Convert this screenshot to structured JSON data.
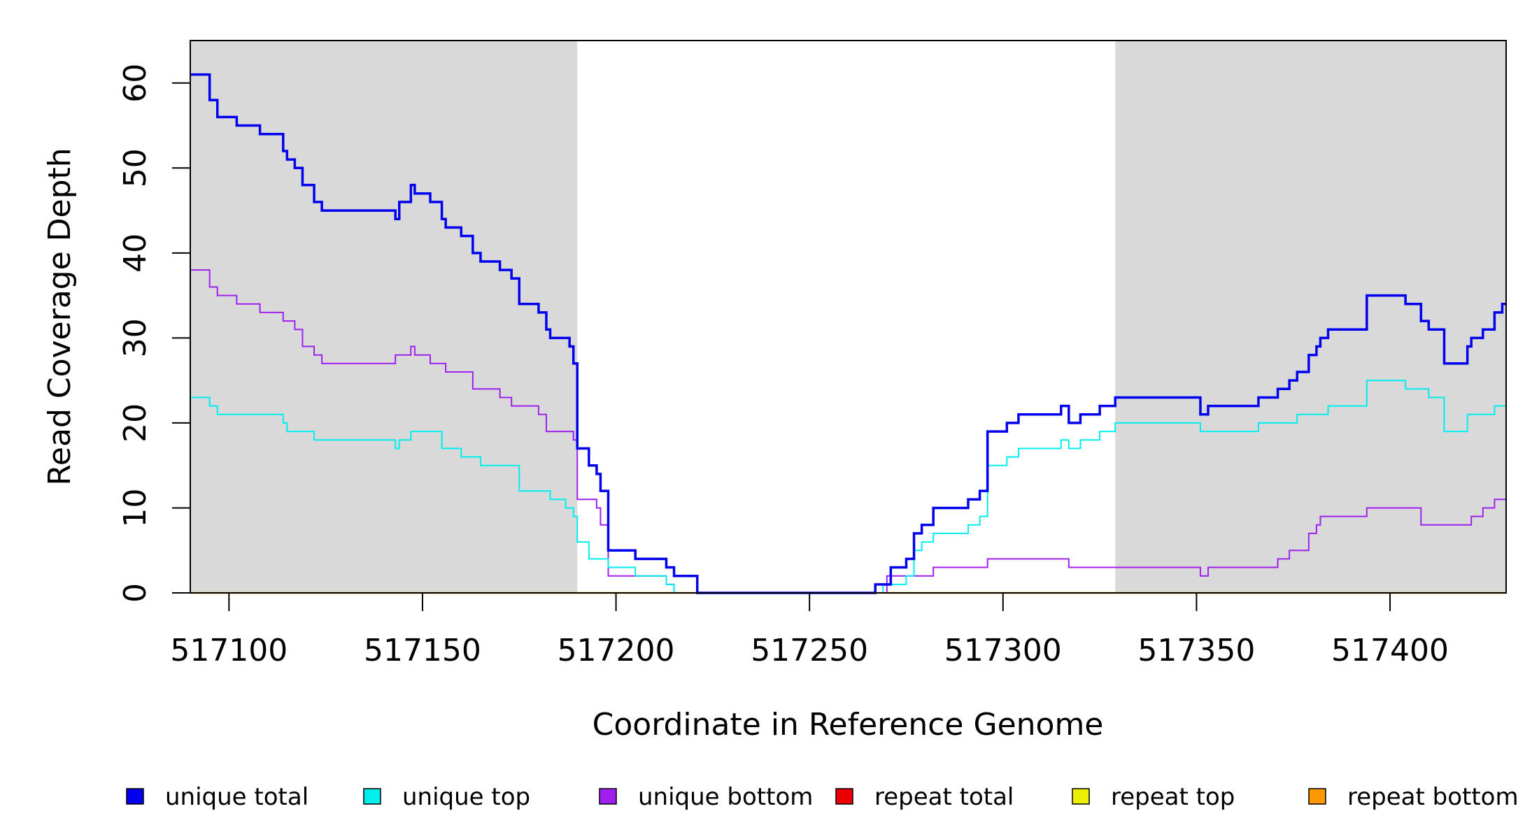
{
  "chart_data": {
    "type": "line",
    "title": "",
    "xlabel": "Coordinate in Reference Genome",
    "ylabel": "Read Coverage Depth",
    "xlim": [
      517090,
      517430
    ],
    "ylim": [
      0,
      65
    ],
    "x_ticks": [
      517100,
      517150,
      517200,
      517250,
      517300,
      517350,
      517400
    ],
    "x_tick_labels": [
      "517100",
      "517150",
      "517200",
      "517250",
      "517300",
      "517350",
      "517400"
    ],
    "y_ticks": [
      0,
      10,
      20,
      30,
      40,
      50,
      60
    ],
    "y_tick_labels": [
      "0",
      "10",
      "20",
      "30",
      "40",
      "50",
      "60"
    ],
    "shaded_regions": [
      {
        "start": 517090,
        "end": 517190,
        "color": "#d9d9d9"
      },
      {
        "start": 517329,
        "end": 517430,
        "color": "#d9d9d9"
      }
    ],
    "legend_position": "bottom",
    "series": [
      {
        "name": "unique total",
        "color": "#0000ee",
        "line_width": 3.5,
        "points": [
          [
            517090,
            61
          ],
          [
            517095,
            58
          ],
          [
            517097,
            56
          ],
          [
            517102,
            55
          ],
          [
            517108,
            54
          ],
          [
            517114,
            52
          ],
          [
            517115,
            51
          ],
          [
            517117,
            50
          ],
          [
            517119,
            48
          ],
          [
            517122,
            46
          ],
          [
            517124,
            45
          ],
          [
            517143,
            44
          ],
          [
            517144,
            46
          ],
          [
            517147,
            48
          ],
          [
            517148,
            47
          ],
          [
            517152,
            46
          ],
          [
            517155,
            44
          ],
          [
            517156,
            43
          ],
          [
            517160,
            42
          ],
          [
            517163,
            40
          ],
          [
            517165,
            39
          ],
          [
            517170,
            38
          ],
          [
            517173,
            37
          ],
          [
            517175,
            34
          ],
          [
            517180,
            33
          ],
          [
            517182,
            31
          ],
          [
            517183,
            30
          ],
          [
            517188,
            29
          ],
          [
            517189,
            27
          ],
          [
            517190,
            17
          ],
          [
            517193,
            15
          ],
          [
            517195,
            14
          ],
          [
            517196,
            12
          ],
          [
            517198,
            5
          ],
          [
            517205,
            4
          ],
          [
            517213,
            3
          ],
          [
            517215,
            2
          ],
          [
            517221,
            0
          ],
          [
            517267,
            1
          ],
          [
            517271,
            3
          ],
          [
            517275,
            4
          ],
          [
            517277,
            7
          ],
          [
            517279,
            8
          ],
          [
            517282,
            10
          ],
          [
            517291,
            11
          ],
          [
            517294,
            12
          ],
          [
            517296,
            19
          ],
          [
            517301,
            20
          ],
          [
            517304,
            21
          ],
          [
            517315,
            22
          ],
          [
            517317,
            20
          ],
          [
            517320,
            21
          ],
          [
            517325,
            22
          ],
          [
            517329,
            23
          ],
          [
            517351,
            21
          ],
          [
            517353,
            22
          ],
          [
            517366,
            23
          ],
          [
            517371,
            24
          ],
          [
            517374,
            25
          ],
          [
            517376,
            26
          ],
          [
            517379,
            28
          ],
          [
            517381,
            29
          ],
          [
            517382,
            30
          ],
          [
            517384,
            31
          ],
          [
            517394,
            35
          ],
          [
            517404,
            34
          ],
          [
            517408,
            32
          ],
          [
            517410,
            31
          ],
          [
            517414,
            27
          ],
          [
            517420,
            29
          ],
          [
            517421,
            30
          ],
          [
            517424,
            31
          ],
          [
            517427,
            33
          ],
          [
            517429,
            34
          ]
        ]
      },
      {
        "name": "unique top",
        "color": "#00eeee",
        "line_width": 2,
        "points": [
          [
            517090,
            23
          ],
          [
            517095,
            22
          ],
          [
            517097,
            21
          ],
          [
            517114,
            20
          ],
          [
            517115,
            19
          ],
          [
            517122,
            18
          ],
          [
            517143,
            17
          ],
          [
            517144,
            18
          ],
          [
            517147,
            19
          ],
          [
            517155,
            17
          ],
          [
            517160,
            16
          ],
          [
            517165,
            15
          ],
          [
            517175,
            12
          ],
          [
            517183,
            11
          ],
          [
            517187,
            10
          ],
          [
            517189,
            9
          ],
          [
            517190,
            6
          ],
          [
            517193,
            4
          ],
          [
            517198,
            3
          ],
          [
            517205,
            2
          ],
          [
            517213,
            1
          ],
          [
            517215,
            0
          ],
          [
            517269,
            1
          ],
          [
            517275,
            2
          ],
          [
            517277,
            5
          ],
          [
            517279,
            6
          ],
          [
            517282,
            7
          ],
          [
            517291,
            8
          ],
          [
            517294,
            9
          ],
          [
            517296,
            15
          ],
          [
            517301,
            16
          ],
          [
            517304,
            17
          ],
          [
            517315,
            18
          ],
          [
            517317,
            17
          ],
          [
            517320,
            18
          ],
          [
            517325,
            19
          ],
          [
            517329,
            20
          ],
          [
            517351,
            19
          ],
          [
            517366,
            20
          ],
          [
            517376,
            21
          ],
          [
            517384,
            22
          ],
          [
            517394,
            25
          ],
          [
            517404,
            24
          ],
          [
            517410,
            23
          ],
          [
            517414,
            19
          ],
          [
            517420,
            21
          ],
          [
            517427,
            22
          ]
        ]
      },
      {
        "name": "unique bottom",
        "color": "#a020f0",
        "line_width": 2,
        "points": [
          [
            517090,
            38
          ],
          [
            517095,
            36
          ],
          [
            517097,
            35
          ],
          [
            517102,
            34
          ],
          [
            517108,
            33
          ],
          [
            517114,
            32
          ],
          [
            517117,
            31
          ],
          [
            517119,
            29
          ],
          [
            517122,
            28
          ],
          [
            517124,
            27
          ],
          [
            517143,
            28
          ],
          [
            517147,
            29
          ],
          [
            517148,
            28
          ],
          [
            517152,
            27
          ],
          [
            517156,
            26
          ],
          [
            517163,
            24
          ],
          [
            517170,
            23
          ],
          [
            517173,
            22
          ],
          [
            517180,
            21
          ],
          [
            517182,
            19
          ],
          [
            517189,
            18
          ],
          [
            517190,
            11
          ],
          [
            517195,
            10
          ],
          [
            517196,
            8
          ],
          [
            517198,
            2
          ],
          [
            517213,
            1
          ],
          [
            517215,
            0
          ],
          [
            517270,
            2
          ],
          [
            517282,
            3
          ],
          [
            517296,
            4
          ],
          [
            517317,
            3
          ],
          [
            517351,
            2
          ],
          [
            517353,
            3
          ],
          [
            517371,
            4
          ],
          [
            517374,
            5
          ],
          [
            517379,
            7
          ],
          [
            517381,
            8
          ],
          [
            517382,
            9
          ],
          [
            517394,
            10
          ],
          [
            517408,
            8
          ],
          [
            517421,
            9
          ],
          [
            517424,
            10
          ],
          [
            517427,
            11
          ]
        ]
      },
      {
        "name": "repeat total",
        "color": "#ee0000",
        "line_width": 2,
        "points": [
          [
            517090,
            0
          ],
          [
            517430,
            0
          ]
        ]
      },
      {
        "name": "repeat top",
        "color": "#eeee00",
        "line_width": 2,
        "points": [
          [
            517090,
            0
          ],
          [
            517430,
            0
          ]
        ]
      },
      {
        "name": "repeat bottom",
        "color": "#ff9900",
        "line_width": 2.5,
        "points": [
          [
            517090,
            0
          ],
          [
            517430,
            0
          ]
        ]
      }
    ]
  }
}
